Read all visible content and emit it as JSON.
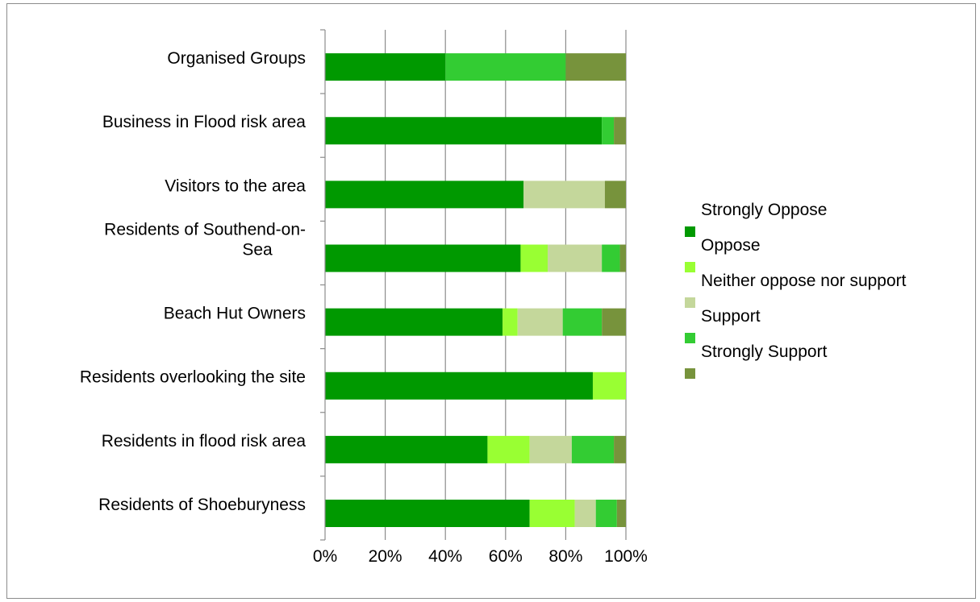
{
  "chart_data": {
    "type": "bar",
    "orientation": "horizontal",
    "stacked": "percent",
    "categories": [
      "Organised Groups",
      "Business in Flood risk area",
      "Visitors to the area",
      "Residents of Southend-on-Sea",
      "Beach Hut Owners",
      "Residents overlooking the site",
      "Residents in flood risk area",
      "Residents of Shoeburyness"
    ],
    "series": [
      {
        "name": "Strongly Oppose",
        "values": [
          0,
          0,
          0,
          0,
          0,
          0,
          0,
          0
        ],
        "color": "#ffffff"
      },
      {
        "name": "Oppose",
        "values": [
          40,
          92,
          66,
          65,
          59,
          89,
          54,
          68
        ],
        "color": "#009900"
      },
      {
        "name": "Neither oppose nor support",
        "values": [
          0,
          0,
          0,
          9,
          5,
          11,
          14,
          15
        ],
        "color": "#99ff33"
      },
      {
        "name": "Support",
        "values": [
          0,
          0,
          27,
          18,
          15,
          0,
          14,
          7
        ],
        "color": "#c4d79b"
      },
      {
        "name": "Strongly Support",
        "values": [
          40,
          4,
          0,
          6,
          13,
          0,
          14,
          7
        ],
        "color": "#33cc33"
      },
      {
        "name": "",
        "values": [
          20,
          4,
          7,
          2,
          8,
          0,
          4,
          3
        ],
        "color": "#77933c"
      }
    ],
    "xlim": [
      0,
      100
    ],
    "x_ticks": [
      "0%",
      "20%",
      "40%",
      "60%",
      "80%",
      "100%"
    ],
    "grid": true,
    "legend_position": "right",
    "title": "",
    "xlabel": "",
    "ylabel": ""
  }
}
